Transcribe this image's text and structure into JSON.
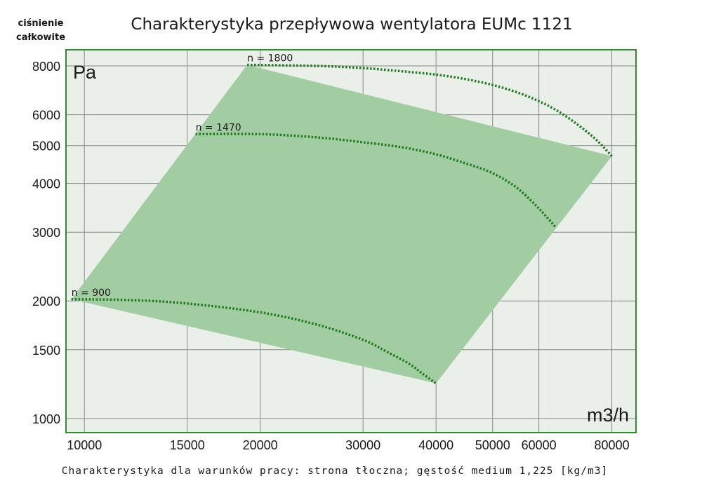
{
  "chart_data": {
    "type": "line",
    "title": "Charakterystyka przepływowa wentylatora EUMc 1121",
    "ylabel": [
      "ciśnienie",
      "całkowite"
    ],
    "y_unit": "Pa",
    "x_unit": "m3/h",
    "x_scale": "log",
    "y_scale": "log",
    "xlim": [
      9300,
      88000
    ],
    "ylim": [
      920,
      8800
    ],
    "x_ticks": [
      10000,
      15000,
      20000,
      30000,
      40000,
      50000,
      60000,
      80000
    ],
    "x_tick_labels": [
      "10000",
      "15000",
      "20000",
      "30000",
      "40000",
      "50000",
      "60000",
      "80000"
    ],
    "y_ticks": [
      1000,
      1500,
      2000,
      3000,
      4000,
      5000,
      6000,
      8000
    ],
    "y_tick_labels": [
      "1000",
      "1500",
      "2000",
      "3000",
      "4000",
      "5000",
      "6000",
      "8000"
    ],
    "grid": true,
    "operating_area": {
      "x": [
        9500,
        19000,
        80000,
        40000
      ],
      "y": [
        2020,
        8050,
        4700,
        1230
      ]
    },
    "series": [
      {
        "name": "n = 1800",
        "x": [
          19000,
          25000,
          30000,
          35000,
          40000,
          45000,
          50000,
          55000,
          60000,
          65000,
          70000,
          75000,
          80000
        ],
        "y": [
          8050,
          8000,
          7900,
          7750,
          7600,
          7400,
          7150,
          6850,
          6500,
          6100,
          5650,
          5200,
          4700
        ]
      },
      {
        "name": "n = 1470",
        "x": [
          15500,
          20000,
          25000,
          30000,
          35000,
          40000,
          45000,
          50000,
          55000,
          60000,
          64000
        ],
        "y": [
          5350,
          5350,
          5250,
          5100,
          4950,
          4750,
          4500,
          4250,
          3900,
          3450,
          3100
        ]
      },
      {
        "name": "n = 900",
        "x": [
          9500,
          12000,
          15000,
          20000,
          25000,
          30000,
          33000,
          36000,
          38000,
          40000
        ],
        "y": [
          2020,
          2010,
          1970,
          1870,
          1740,
          1590,
          1480,
          1380,
          1300,
          1230
        ]
      }
    ],
    "footnote": "Charakterystyka dla warunków pracy: strona tłoczna; gęstość medium 1,225 [kg/m3]"
  }
}
